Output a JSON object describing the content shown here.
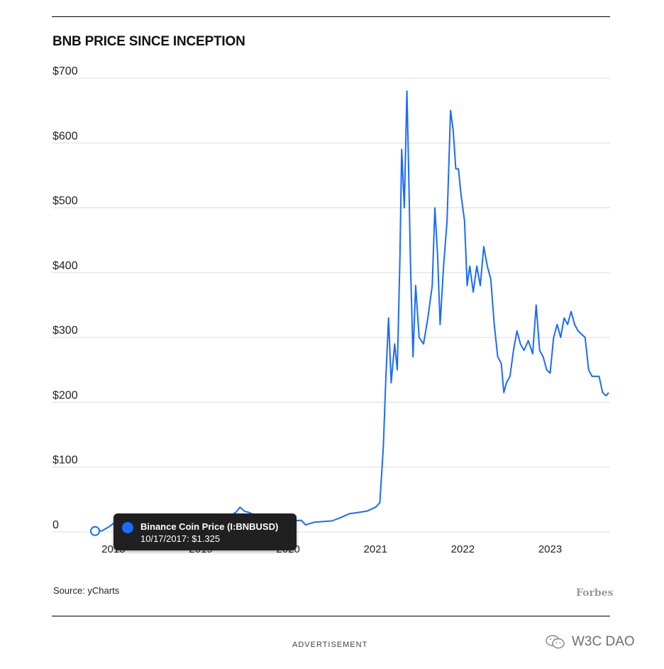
{
  "watermark": {
    "text": "W3C DAO"
  },
  "footer": {
    "source": "Source: yCharts",
    "brand": "Forbes",
    "advertisement": "ADVERTISEMENT"
  },
  "tooltip": {
    "series_name": "Binance Coin Price (I:BNBUSD)",
    "value_text": "10/17/2017: $1.325"
  },
  "colors": {
    "line": "#1a6bff",
    "grid": "#dcdcdc",
    "tooltip_bg": "#202020"
  },
  "chart_data": {
    "type": "line",
    "title": "BNB PRICE SINCE INCEPTION",
    "xlabel": "",
    "ylabel": "",
    "ylim": [
      0,
      700
    ],
    "y_ticks": [
      {
        "value": 700,
        "label": "$700"
      },
      {
        "value": 600,
        "label": "$600"
      },
      {
        "value": 500,
        "label": "$500"
      },
      {
        "value": 400,
        "label": "$400"
      },
      {
        "value": 300,
        "label": "$300"
      },
      {
        "value": 200,
        "label": "$200"
      },
      {
        "value": 100,
        "label": "$100"
      },
      {
        "value": 0,
        "label": "0"
      }
    ],
    "x_ticks": [
      {
        "value": 2018,
        "label": "2018"
      },
      {
        "value": 2019,
        "label": "2019"
      },
      {
        "value": 2020,
        "label": "2020"
      },
      {
        "value": 2021,
        "label": "2021"
      },
      {
        "value": 2022,
        "label": "2022"
      },
      {
        "value": 2023,
        "label": "2023"
      }
    ],
    "xlim": [
      2017.79,
      2023.67
    ],
    "grid": true,
    "legend": "none",
    "highlight": {
      "x": 2017.79,
      "y": 1.325
    },
    "series": [
      {
        "points": [
          [
            2017.79,
            1.3
          ],
          [
            2017.87,
            2
          ],
          [
            2017.95,
            8
          ],
          [
            2018.0,
            13
          ],
          [
            2018.05,
            20
          ],
          [
            2018.12,
            12
          ],
          [
            2018.22,
            11
          ],
          [
            2018.3,
            14
          ],
          [
            2018.4,
            14
          ],
          [
            2018.55,
            13
          ],
          [
            2018.7,
            10
          ],
          [
            2018.8,
            8
          ],
          [
            2018.9,
            6
          ],
          [
            2019.0,
            6
          ],
          [
            2019.1,
            10
          ],
          [
            2019.2,
            16
          ],
          [
            2019.3,
            22
          ],
          [
            2019.4,
            30
          ],
          [
            2019.45,
            38
          ],
          [
            2019.5,
            32
          ],
          [
            2019.55,
            30
          ],
          [
            2019.65,
            24
          ],
          [
            2019.75,
            20
          ],
          [
            2019.85,
            18
          ],
          [
            2019.95,
            15
          ],
          [
            2020.05,
            17
          ],
          [
            2020.15,
            18
          ],
          [
            2020.2,
            11
          ],
          [
            2020.3,
            15
          ],
          [
            2020.4,
            16
          ],
          [
            2020.5,
            17
          ],
          [
            2020.6,
            22
          ],
          [
            2020.7,
            28
          ],
          [
            2020.8,
            30
          ],
          [
            2020.9,
            32
          ],
          [
            2021.0,
            38
          ],
          [
            2021.05,
            45
          ],
          [
            2021.09,
            130
          ],
          [
            2021.12,
            240
          ],
          [
            2021.15,
            330
          ],
          [
            2021.18,
            230
          ],
          [
            2021.22,
            290
          ],
          [
            2021.25,
            250
          ],
          [
            2021.28,
            420
          ],
          [
            2021.3,
            590
          ],
          [
            2021.33,
            500
          ],
          [
            2021.36,
            680
          ],
          [
            2021.38,
            560
          ],
          [
            2021.4,
            420
          ],
          [
            2021.43,
            270
          ],
          [
            2021.46,
            380
          ],
          [
            2021.5,
            300
          ],
          [
            2021.55,
            290
          ],
          [
            2021.6,
            330
          ],
          [
            2021.65,
            380
          ],
          [
            2021.68,
            500
          ],
          [
            2021.71,
            430
          ],
          [
            2021.74,
            320
          ],
          [
            2021.78,
            410
          ],
          [
            2021.82,
            480
          ],
          [
            2021.86,
            650
          ],
          [
            2021.89,
            620
          ],
          [
            2021.92,
            560
          ],
          [
            2021.95,
            560
          ],
          [
            2021.98,
            520
          ],
          [
            2022.02,
            480
          ],
          [
            2022.05,
            380
          ],
          [
            2022.08,
            410
          ],
          [
            2022.12,
            370
          ],
          [
            2022.16,
            410
          ],
          [
            2022.2,
            380
          ],
          [
            2022.24,
            440
          ],
          [
            2022.28,
            410
          ],
          [
            2022.32,
            390
          ],
          [
            2022.36,
            320
          ],
          [
            2022.4,
            270
          ],
          [
            2022.44,
            260
          ],
          [
            2022.47,
            215
          ],
          [
            2022.5,
            230
          ],
          [
            2022.54,
            240
          ],
          [
            2022.58,
            280
          ],
          [
            2022.62,
            310
          ],
          [
            2022.66,
            290
          ],
          [
            2022.7,
            280
          ],
          [
            2022.75,
            295
          ],
          [
            2022.8,
            275
          ],
          [
            2022.84,
            350
          ],
          [
            2022.88,
            280
          ],
          [
            2022.92,
            270
          ],
          [
            2022.96,
            250
          ],
          [
            2023.0,
            245
          ],
          [
            2023.04,
            300
          ],
          [
            2023.08,
            320
          ],
          [
            2023.12,
            300
          ],
          [
            2023.16,
            330
          ],
          [
            2023.2,
            320
          ],
          [
            2023.24,
            340
          ],
          [
            2023.28,
            320
          ],
          [
            2023.32,
            310
          ],
          [
            2023.36,
            305
          ],
          [
            2023.4,
            300
          ],
          [
            2023.44,
            250
          ],
          [
            2023.48,
            240
          ],
          [
            2023.52,
            240
          ],
          [
            2023.56,
            240
          ],
          [
            2023.6,
            215
          ],
          [
            2023.64,
            210
          ],
          [
            2023.67,
            215
          ]
        ]
      }
    ]
  }
}
